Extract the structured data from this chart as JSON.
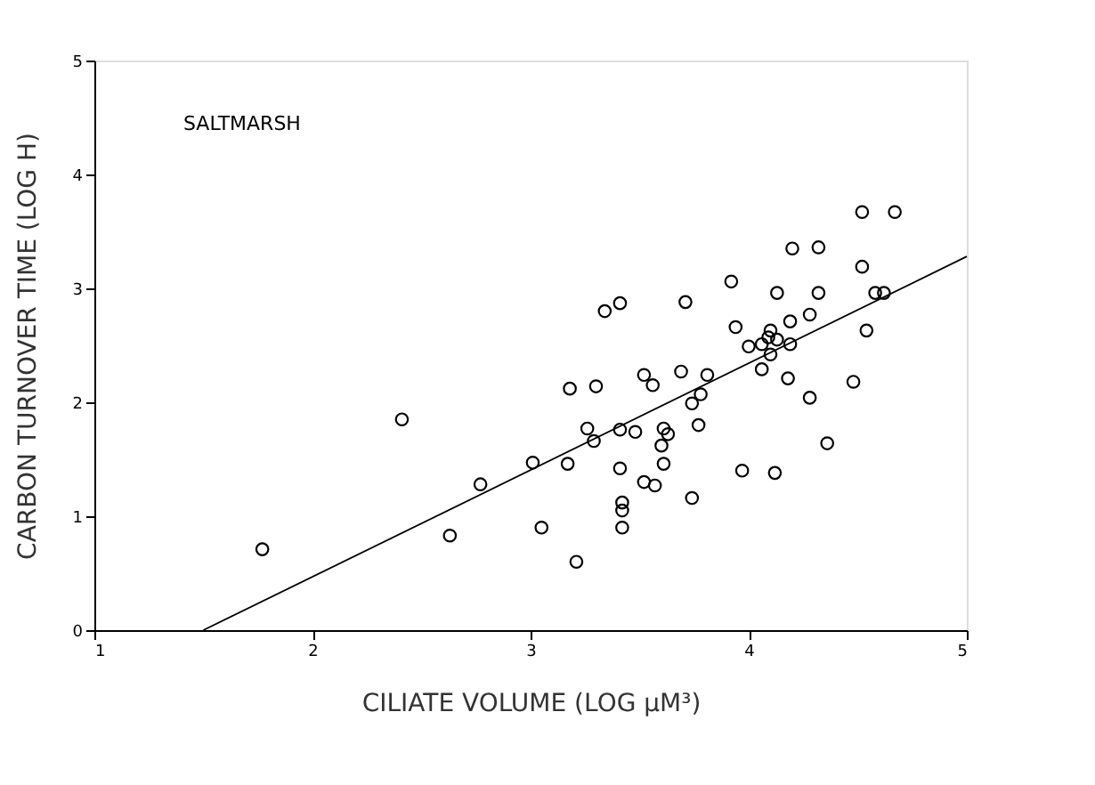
{
  "chart_data": {
    "type": "scatter",
    "xlabel": "CILIATE VOLUME (LOG µM³)",
    "ylabel": "CARBON TURNOVER TIME (LOG H)",
    "annotations": [
      "SALTMARSH"
    ],
    "xlim": [
      1,
      5
    ],
    "xticks": [
      1,
      2,
      3,
      4,
      5
    ],
    "ylim": [
      0,
      5
    ],
    "yticks": [
      0,
      1,
      2,
      3,
      4,
      5
    ],
    "grid": false,
    "series": [
      {
        "color": "#000000",
        "marker": "circle",
        "x": [
          1.77,
          2.41,
          2.63,
          2.77,
          3.01,
          3.05,
          3.17,
          3.21,
          3.18,
          3.3,
          3.26,
          3.29,
          3.34,
          3.41,
          3.41,
          3.48,
          3.41,
          3.42,
          3.42,
          3.42,
          3.52,
          3.56,
          3.52,
          3.57,
          3.61,
          3.63,
          3.6,
          3.61,
          3.69,
          3.71,
          3.74,
          3.78,
          3.81,
          3.77,
          3.74,
          3.92,
          3.94,
          3.97,
          4.0,
          4.06,
          4.1,
          4.09,
          4.06,
          4.13,
          4.1,
          4.12,
          4.13,
          4.19,
          4.19,
          4.18,
          4.2,
          4.28,
          4.28,
          4.32,
          4.32,
          4.36,
          4.48,
          4.52,
          4.67,
          4.52,
          4.54,
          4.58,
          4.62
        ],
        "values": [
          0.71,
          1.85,
          0.83,
          1.28,
          1.47,
          0.9,
          1.46,
          0.6,
          2.12,
          2.14,
          1.77,
          1.66,
          2.8,
          2.87,
          1.76,
          1.74,
          1.42,
          1.12,
          1.05,
          0.9,
          2.24,
          2.15,
          1.3,
          1.27,
          1.77,
          1.72,
          1.62,
          1.46,
          2.27,
          2.88,
          1.99,
          2.07,
          2.24,
          1.8,
          1.16,
          3.06,
          2.66,
          1.4,
          2.49,
          2.29,
          2.63,
          2.57,
          2.51,
          2.55,
          2.42,
          1.38,
          2.96,
          2.71,
          2.51,
          2.21,
          3.35,
          2.04,
          2.77,
          3.36,
          2.96,
          1.64,
          2.18,
          3.67,
          3.67,
          3.19,
          2.63,
          2.96,
          2.96
        ]
      },
      {
        "type": "line",
        "color": "#000000",
        "x": [
          1.5,
          5
        ],
        "values": [
          0,
          3.28
        ]
      }
    ]
  }
}
